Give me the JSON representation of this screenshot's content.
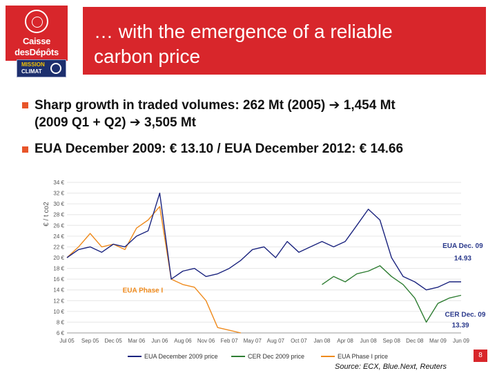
{
  "logos": {
    "cdc_line1": "Caisse",
    "cdc_line2": "desDépôts",
    "mission_line1": "MISSION",
    "mission_line2": "CLIMAT"
  },
  "title": {
    "line1": "… with the emergence of a reliable",
    "line2": "carbon price"
  },
  "bullets": [
    {
      "p1": "Sharp growth in traded volumes: 262 Mt (2005)",
      "arrow": "➔",
      "p2": "1,454 Mt",
      "p3": "(2009 Q1 + Q2)",
      "p4": "3,505 Mt"
    },
    {
      "text": "EUA December 2009: € 13.10 / EUA December 2012: € 14.66"
    }
  ],
  "chart_data": {
    "type": "line",
    "ylabel": "€ / t co2",
    "yticks": [
      "6 €",
      "8 €",
      "10 €",
      "12 €",
      "14 €",
      "16 €",
      "18 €",
      "20 €",
      "22 €",
      "24 €",
      "26 €",
      "28 €",
      "30 €",
      "32 €",
      "34 €"
    ],
    "ylim": [
      6,
      34
    ],
    "xticks": [
      "Jul 05",
      "Sep 05",
      "Dec 05",
      "Mar 06",
      "Jun 06",
      "Aug 06",
      "Nov 06",
      "Feb 07",
      "May 07",
      "Aug 07",
      "Oct 07",
      "Jan 08",
      "Apr 08",
      "Jun 08",
      "Sep 08",
      "Dec 08",
      "Mar 09",
      "Jun 09"
    ],
    "colors": {
      "eua_dec09": "#1a237e",
      "cer_dec09": "#2e7d32",
      "eua_phase1": "#ef8a1c",
      "annotation_blue": "#2b3a8c",
      "annotation_orange": "#ef8a1c"
    },
    "series": [
      {
        "name": "EUA December 2009 price",
        "key": "eua_dec09",
        "x": [
          0,
          0.5,
          1,
          1.5,
          2,
          2.5,
          3,
          3.5,
          4,
          4.5,
          5,
          5.5,
          6,
          6.5,
          7,
          7.5,
          8,
          8.5,
          9,
          9.5,
          10,
          10.5,
          11,
          11.5,
          12,
          12.5,
          13,
          13.5,
          14,
          14.5,
          15,
          15.5,
          16,
          16.5,
          17
        ],
        "values": [
          20,
          21.5,
          22,
          21,
          22.5,
          22,
          24,
          25,
          32,
          16,
          17.5,
          18,
          16.5,
          17,
          18,
          19.5,
          21.5,
          22,
          20,
          23,
          21,
          22,
          23,
          22,
          23,
          26,
          29,
          27,
          20,
          16.5,
          15.5,
          14,
          14.5,
          15.5,
          15.5
        ]
      },
      {
        "name": "CER Dec 2009 price",
        "key": "cer_dec09",
        "x": [
          11,
          11.5,
          12,
          12.5,
          13,
          13.5,
          14,
          14.5,
          15,
          15.5,
          16,
          16.5,
          17
        ],
        "values": [
          15,
          16.5,
          15.5,
          17,
          17.5,
          18.5,
          16.5,
          15,
          12.5,
          8,
          11.5,
          12.5,
          13
        ]
      },
      {
        "name": "EUA Phase I price",
        "key": "eua_phase1",
        "x": [
          0,
          0.5,
          1,
          1.5,
          2,
          2.5,
          3,
          3.5,
          4,
          4.5,
          5,
          5.5,
          6,
          6.5,
          7,
          7.5
        ],
        "values": [
          20,
          22,
          24.5,
          22,
          22.5,
          21.5,
          25.5,
          27,
          29.5,
          16,
          15,
          14.5,
          12,
          7,
          6.5,
          6
        ]
      }
    ],
    "annotations": [
      {
        "text": "EUA Dec. 09",
        "key": "annotation_blue",
        "x": 16.2,
        "y": 21.8
      },
      {
        "text": "14.93",
        "key": "annotation_blue",
        "x": 16.7,
        "y": 19.5
      },
      {
        "text": "EUA Phase I",
        "key": "annotation_orange",
        "x": 2.4,
        "y": 13.5
      },
      {
        "text": "CER Dec. 09",
        "key": "annotation_blue",
        "x": 16.3,
        "y": 9
      },
      {
        "text": "13.39",
        "key": "annotation_blue",
        "x": 16.6,
        "y": 7
      }
    ],
    "source": "Source: ECX, Blue.Next, Reuters"
  },
  "page_number": "8"
}
